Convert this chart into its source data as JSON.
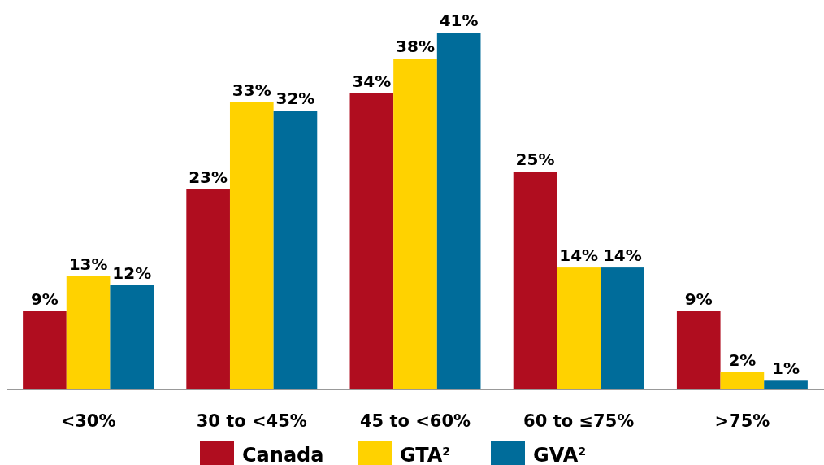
{
  "chart_data": {
    "type": "bar",
    "categories": [
      "<30%",
      "30 to <45%",
      "45 to <60%",
      "60 to ≤75%",
      ">75%"
    ],
    "series": [
      {
        "name": "Canada",
        "color": "#b00d1f",
        "values": [
          9,
          23,
          34,
          25,
          9
        ],
        "value_labels": [
          "9%",
          "23%",
          "34%",
          "25%",
          "9%"
        ]
      },
      {
        "name": "GTA$^{2}$",
        "color": "#ffd200",
        "values": [
          13,
          33,
          38,
          14,
          2
        ],
        "value_labels": [
          "13%",
          "33%",
          "38%",
          "14%",
          "2%"
        ]
      },
      {
        "name": "GVA$^{2}$",
        "color": "#006c9a",
        "values": [
          12,
          32,
          41,
          14,
          1
        ],
        "value_labels": [
          "12%",
          "32%",
          "41%",
          "14%",
          "1%"
        ]
      }
    ],
    "legend": "bottom"
  }
}
